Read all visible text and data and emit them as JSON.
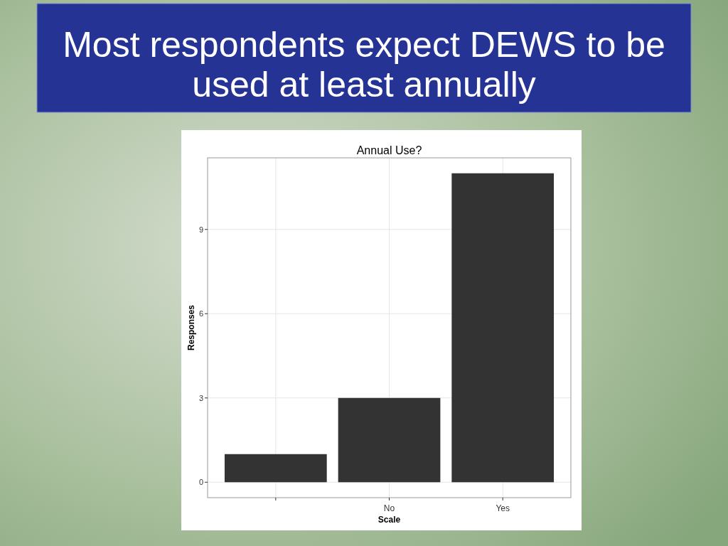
{
  "chart_data": {
    "type": "bar",
    "title": "Most respondents expect DEWS to be used at least annually",
    "subtitle": "Annual Use?",
    "xlabel": "Scale",
    "ylabel": "Responses",
    "categories": [
      null,
      "No",
      "Yes"
    ],
    "values": [
      1,
      3,
      11
    ],
    "color": "#333333",
    "ylim": [
      -0.55,
      11.55
    ],
    "yticks": [
      0,
      3,
      6,
      9
    ],
    "grid": true
  }
}
